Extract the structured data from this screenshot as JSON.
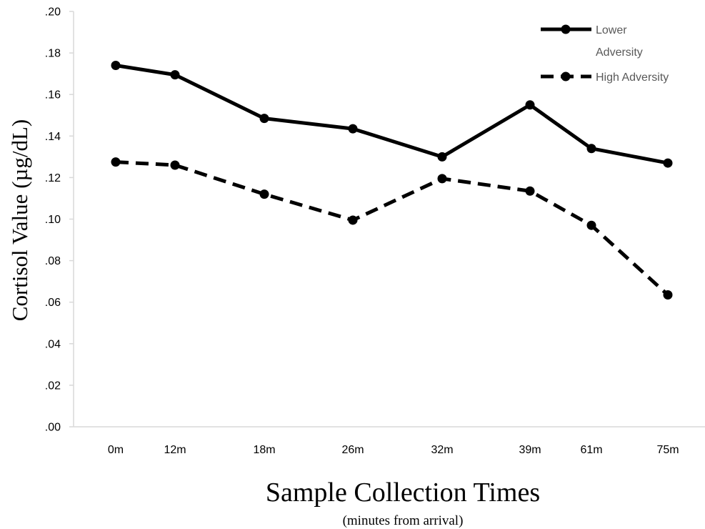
{
  "chart_data": {
    "type": "line",
    "title": "",
    "xlabel": "Sample Collection Times",
    "xlabel_sub": "(minutes from arrival)",
    "ylabel": "Cortisol Value (µg/dL)",
    "categories": [
      "0m",
      "12m",
      "18m",
      "26m",
      "32m",
      "39m",
      "61m",
      "75m"
    ],
    "x": [
      0,
      12,
      18,
      26,
      32,
      39,
      61,
      75
    ],
    "ylim": [
      0,
      0.2
    ],
    "yticks": [
      {
        "value": 0.0,
        "label": ".00"
      },
      {
        "value": 0.02,
        "label": ".02"
      },
      {
        "value": 0.04,
        "label": ".04"
      },
      {
        "value": 0.06,
        "label": ".06"
      },
      {
        "value": 0.08,
        "label": ".08"
      },
      {
        "value": 0.1,
        "label": ".10"
      },
      {
        "value": 0.12,
        "label": ".12"
      },
      {
        "value": 0.14,
        "label": ".14"
      },
      {
        "value": 0.16,
        "label": ".16"
      },
      {
        "value": 0.18,
        "label": ".18"
      },
      {
        "value": 0.2,
        "label": ".20"
      }
    ],
    "grid": false,
    "legend_position": "top-right",
    "series": [
      {
        "name": "Lower Adversity",
        "name_lines": [
          "Lower",
          "Adversity"
        ],
        "style": "solid",
        "color": "#000000",
        "x": [
          0,
          14,
          27,
          40,
          53,
          66,
          79,
          92
        ],
        "values": [
          0.174,
          0.1695,
          0.1485,
          0.1435,
          0.13,
          0.155,
          0.134,
          0.127
        ]
      },
      {
        "name": "High Adversity",
        "name_lines": [
          "High Adversity"
        ],
        "style": "dashed",
        "color": "#000000",
        "x": [
          0,
          14,
          27,
          40,
          53,
          66,
          79,
          92
        ],
        "values": [
          0.1275,
          0.126,
          0.112,
          0.0995,
          0.1195,
          0.1135,
          0.097,
          0.0635
        ]
      }
    ]
  }
}
